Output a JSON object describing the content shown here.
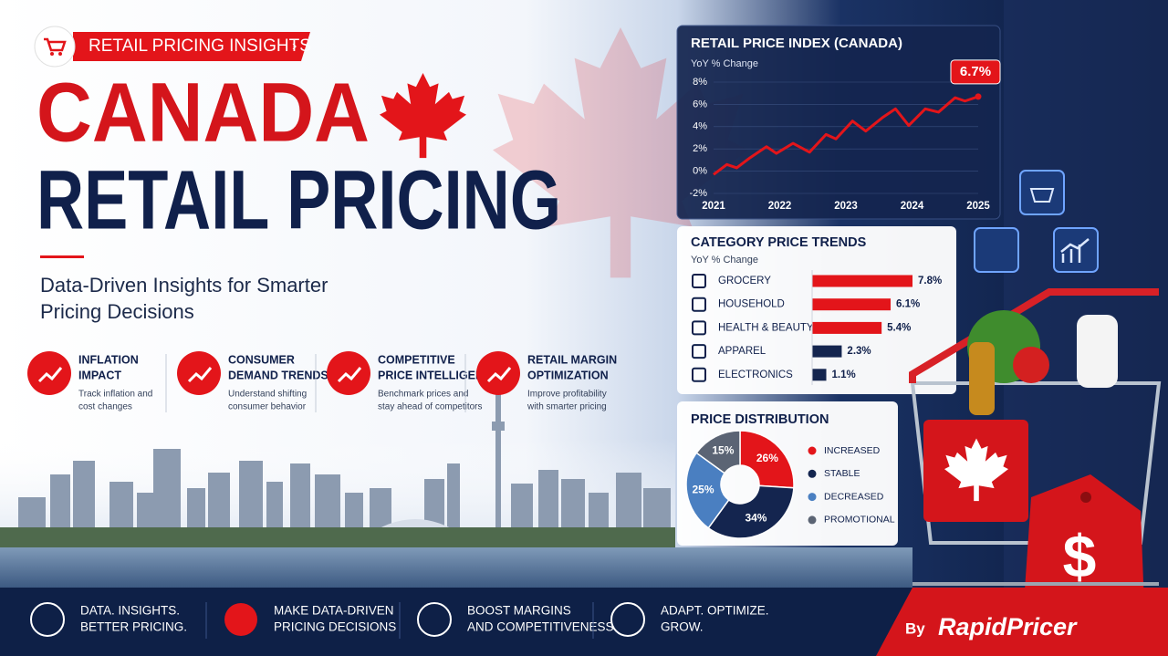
{
  "badge": "RETAIL PRICING INSIGHTS",
  "title_line1": "CANADA",
  "title_line2": "RETAIL PRICING",
  "subtitle_lines": [
    "Data-Driven Insights for Smarter",
    "Pricing Decisions"
  ],
  "features": [
    {
      "title_lines": [
        "INFLATION",
        "IMPACT"
      ],
      "desc_lines": [
        "Track inflation and",
        "cost changes"
      ]
    },
    {
      "title_lines": [
        "CONSUMER",
        "DEMAND TRENDS"
      ],
      "desc_lines": [
        "Understand shifting",
        "consumer behavior"
      ]
    },
    {
      "title_lines": [
        "COMPETITIVE",
        "PRICE INTELLIGENCE"
      ],
      "desc_lines": [
        "Benchmark prices and",
        "stay ahead of competitors"
      ]
    },
    {
      "title_lines": [
        "RETAIL MARGIN",
        "OPTIMIZATION"
      ],
      "desc_lines": [
        "Improve profitability",
        "with smarter pricing"
      ]
    }
  ],
  "footer": [
    {
      "lines": [
        "DATA. INSIGHTS.",
        "BETTER PRICING."
      ]
    },
    {
      "lines": [
        "MAKE DATA-DRIVEN",
        "PRICING DECISIONS"
      ]
    },
    {
      "lines": [
        "BOOST MARGINS",
        "AND COMPETITIVENESS"
      ]
    },
    {
      "lines": [
        "ADAPT. OPTIMIZE.",
        "GROW."
      ]
    }
  ],
  "brand_prefix": "By",
  "brand": "RapidPricer",
  "tag_symbol": "$",
  "chart_data": [
    {
      "type": "line",
      "title": "RETAIL PRICE INDEX (CANADA)",
      "subtitle": "YoY % Change",
      "x": [
        2021.0,
        2021.2,
        2021.35,
        2021.55,
        2021.8,
        2021.95,
        2022.2,
        2022.45,
        2022.7,
        2022.85,
        2023.1,
        2023.3,
        2023.55,
        2023.75,
        2023.95,
        2024.2,
        2024.4,
        2024.65,
        2024.8,
        2025.0
      ],
      "values": [
        -0.3,
        0.6,
        0.3,
        1.2,
        2.2,
        1.6,
        2.5,
        1.7,
        3.3,
        2.9,
        4.5,
        3.6,
        4.8,
        5.6,
        4.1,
        5.6,
        5.3,
        6.6,
        6.3,
        6.7
      ],
      "value_labels": [
        null,
        null,
        null,
        null,
        null,
        null,
        null,
        null,
        null,
        null,
        null,
        null,
        null,
        null,
        null,
        null,
        null,
        null,
        null,
        "6.7%"
      ],
      "color": "#e3151a",
      "xlim": [
        2021,
        2025
      ],
      "xticks": [
        2021,
        2022,
        2023,
        2024,
        2025
      ],
      "ylim": [
        -2,
        8
      ],
      "yticks": [
        {
          "value": -2,
          "label": "-2%"
        },
        {
          "value": 0,
          "label": "0%"
        },
        {
          "value": 2,
          "label": "2%"
        },
        {
          "value": 4,
          "label": "4%"
        },
        {
          "value": 6,
          "label": "6%"
        },
        {
          "value": 8,
          "label": "8%"
        }
      ],
      "grid": true
    },
    {
      "type": "hbar",
      "title": "CATEGORY PRICE TRENDS",
      "subtitle": "YoY % Change",
      "categories": [
        "GROCERY",
        "HOUSEHOLD",
        "HEALTH & BEAUTY",
        "APPAREL",
        "ELECTRONICS"
      ],
      "values": [
        7.8,
        6.1,
        5.4,
        2.3,
        1.1
      ],
      "value_labels": [
        "7.8%",
        "6.1%",
        "5.4%",
        "2.3%",
        "1.1%"
      ],
      "colors": [
        "#e3151a",
        "#e3151a",
        "#e3151a",
        "#14254f",
        "#14254f"
      ]
    },
    {
      "type": "pie",
      "title": "PRICE DISTRIBUTION",
      "categories": [
        "INCREASED",
        "STABLE",
        "DECREASED",
        "PROMOTIONAL"
      ],
      "values": [
        26,
        34,
        25,
        15
      ],
      "value_labels": [
        "26%",
        "34%",
        "25%",
        "15%"
      ],
      "colors": [
        "#e3151a",
        "#14254f",
        "#4a7fc1",
        "#5b6474"
      ],
      "donut": true
    }
  ]
}
